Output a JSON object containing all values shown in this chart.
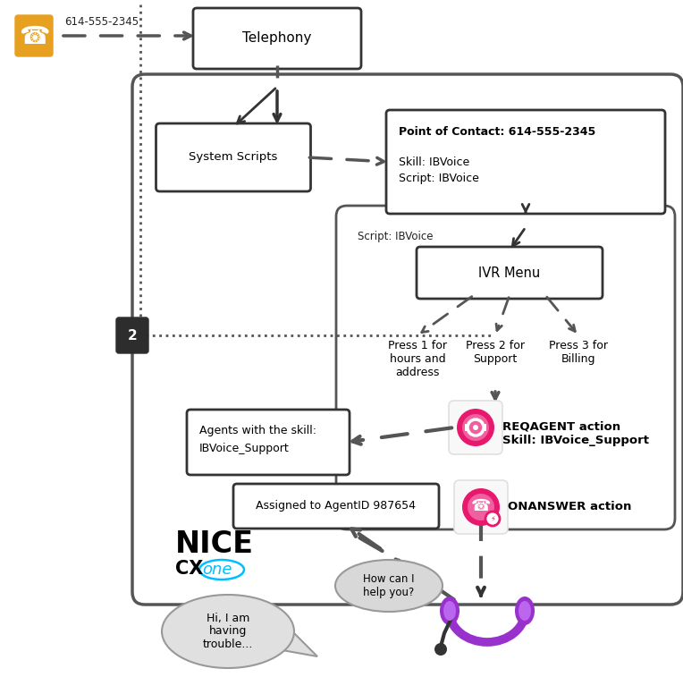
{
  "bg": "#ffffff",
  "dark": "#2d2d2d",
  "mid": "#555555",
  "border": "#444444",
  "phone_orange": "#E8A020",
  "pink_dark": "#e8186c",
  "pink_mid": "#f0478a",
  "pink_light": "#f87cb8",
  "purple": "#9932CC",
  "purple_light": "#bb66ee",
  "cyan": "#00BFFF",
  "bubble_fill": "#d8d8d8",
  "bubble_border": "#999999",
  "step2_bg": "#2d2d2d",
  "number_label": "614-555-2345",
  "telephony_label": "Telephony",
  "system_scripts_label": "System Scripts",
  "poc_label": "Point of Contact: 614-555-2345\n\nSkill: IBVoice\nScript: IBVoice",
  "script_label": "Script: IBVoice",
  "ivr_label": "IVR Menu",
  "press1_label": "Press 1 for\nhours and\naddress",
  "press2_label": "Press 2 for\nSupport",
  "press3_label": "Press 3 for\nBilling",
  "reqagent_l1": "REQAGENT action",
  "reqagent_l2": "Skill: IBVoice_Support",
  "onanswer_label": "ONANSWER action",
  "agents_l1": "Agents with the skill:",
  "agents_l2": "IBVoice_Support",
  "assigned_label": "Assigned to AgentID 987654",
  "step2_label": "2",
  "howcanhelp": "How can I\nhelp you?",
  "hiiam": "Hi, I am\nhaving\ntrouble...",
  "nice": "NICE",
  "cx": "CX",
  "one_": "one"
}
